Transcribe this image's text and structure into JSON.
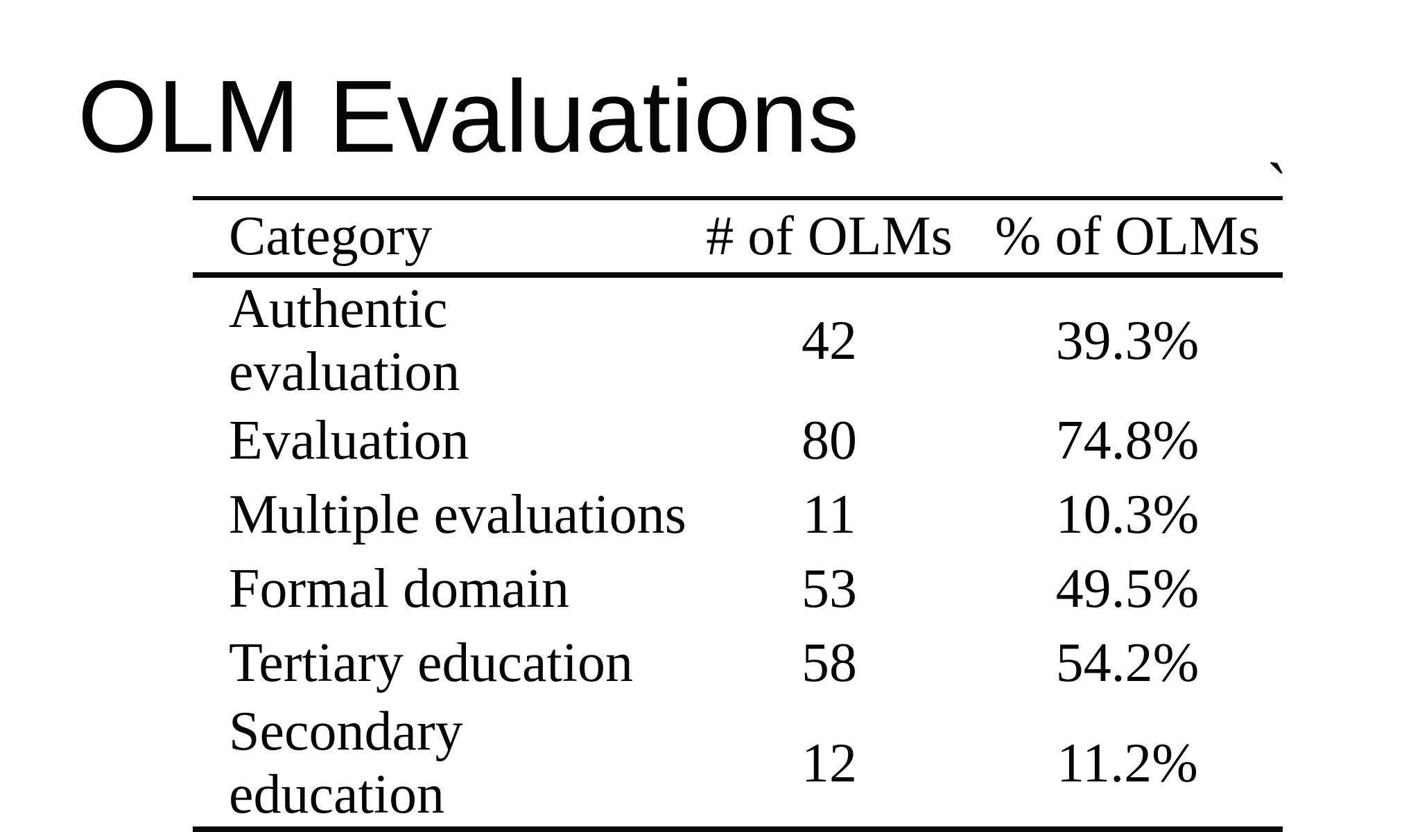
{
  "page": {
    "background": "#ffffff",
    "text_color": "#050505",
    "rule_color": "#0a0a0a"
  },
  "title": "OLM Evaluations",
  "decoration": {
    "stray_mark": "`"
  },
  "table": {
    "columns": [
      "Category",
      "# of OLMs",
      "% of OLMs"
    ],
    "rows": [
      {
        "category": "Authentic evaluation",
        "count": "42",
        "percent": "39.3%"
      },
      {
        "category": "Evaluation",
        "count": "80",
        "percent": "74.8%"
      },
      {
        "category": "Multiple evaluations",
        "count": "11",
        "percent": "10.3%"
      },
      {
        "category": "Formal domain",
        "count": "53",
        "percent": "49.5%"
      },
      {
        "category": "Tertiary education",
        "count": "58",
        "percent": "54.2%"
      },
      {
        "category": "Secondary education",
        "count": "12",
        "percent": "11.2%"
      }
    ]
  },
  "chart_data": {
    "type": "table",
    "title": "OLM Evaluations",
    "columns": [
      "Category",
      "# of OLMs",
      "% of OLMs"
    ],
    "rows": [
      [
        "Authentic evaluation",
        42,
        "39.3%"
      ],
      [
        "Evaluation",
        80,
        "74.8%"
      ],
      [
        "Multiple evaluations",
        11,
        "10.3%"
      ],
      [
        "Formal domain",
        53,
        "49.5%"
      ],
      [
        "Tertiary education",
        58,
        "54.2%"
      ],
      [
        "Secondary education",
        12,
        "11.2%"
      ]
    ]
  }
}
